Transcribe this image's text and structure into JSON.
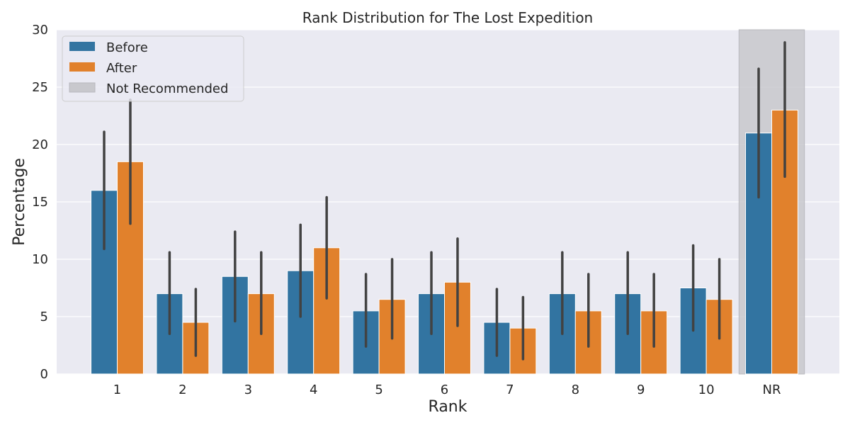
{
  "chart_data": {
    "type": "bar",
    "title": "Rank Distribution for The Lost Expedition",
    "xlabel": "Rank",
    "ylabel": "Percentage",
    "ylim": [
      0,
      30
    ],
    "yticks": [
      0,
      5,
      10,
      15,
      20,
      25,
      30
    ],
    "categories": [
      "1",
      "2",
      "3",
      "4",
      "5",
      "6",
      "7",
      "8",
      "9",
      "10",
      "NR"
    ],
    "series": [
      {
        "name": "Before",
        "color": "#3274a1",
        "values": [
          16,
          7,
          8.5,
          9,
          5.5,
          7,
          4.5,
          7,
          7,
          7.5,
          21
        ],
        "ci_low": [
          10.9,
          3.5,
          4.6,
          5.0,
          2.4,
          3.5,
          1.6,
          3.5,
          3.5,
          3.8,
          15.4
        ],
        "ci_high": [
          21.1,
          10.6,
          12.4,
          13.0,
          8.7,
          10.6,
          7.4,
          10.6,
          10.6,
          11.2,
          26.6
        ]
      },
      {
        "name": "After",
        "color": "#e1812c",
        "values": [
          18.5,
          4.5,
          7,
          11,
          6.5,
          8,
          4,
          5.5,
          5.5,
          6.5,
          23
        ],
        "ci_low": [
          13.1,
          1.6,
          3.5,
          6.6,
          3.1,
          4.2,
          1.3,
          2.4,
          2.4,
          3.1,
          17.2
        ],
        "ci_high": [
          23.9,
          7.4,
          10.6,
          15.4,
          10.0,
          11.8,
          6.7,
          8.7,
          8.7,
          10.0,
          28.9
        ]
      }
    ],
    "highlight": {
      "category": "NR",
      "label": "Not Recommended",
      "color": "#c8c8cd"
    },
    "grid": true,
    "legend_position": "top-left",
    "background": "#eaeaf2"
  }
}
